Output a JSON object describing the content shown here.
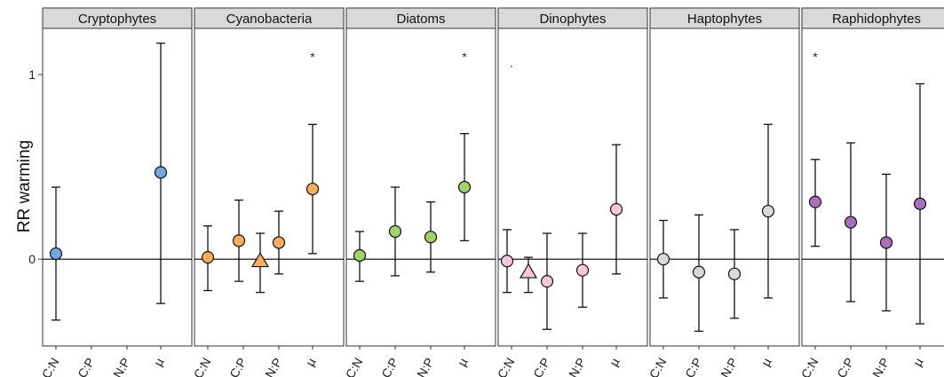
{
  "chart_data": {
    "type": "scatter",
    "ylabel": "RR warming",
    "y_ticks": [
      "0",
      "1"
    ],
    "y_tick_values": [
      0,
      1
    ],
    "ylim": [
      -0.47,
      1.25
    ],
    "categories": [
      "C:N",
      "C:P",
      "N:P",
      "µ"
    ],
    "reference_line": 0,
    "panels": [
      {
        "name": "Cryptophytes",
        "color": "#6fa8dc",
        "points": [
          {
            "x": "C:N",
            "y": 0.03,
            "lo": -0.33,
            "hi": 0.39,
            "shape": "circle"
          },
          {
            "x": "µ",
            "y": 0.47,
            "lo": -0.24,
            "hi": 1.17,
            "shape": "circle"
          }
        ],
        "annotations": []
      },
      {
        "name": "Cyanobacteria",
        "color": "#f6ad5c",
        "points": [
          {
            "x": "C:N",
            "y": 0.01,
            "lo": -0.17,
            "hi": 0.18,
            "shape": "circle"
          },
          {
            "x": "C:P",
            "y": 0.1,
            "lo": -0.12,
            "hi": 0.32,
            "shape": "circle"
          },
          {
            "x": "C:P",
            "y": -0.01,
            "lo": -0.18,
            "hi": 0.14,
            "shape": "triangle"
          },
          {
            "x": "N:P",
            "y": 0.09,
            "lo": -0.08,
            "hi": 0.26,
            "shape": "circle"
          },
          {
            "x": "µ",
            "y": 0.38,
            "lo": 0.03,
            "hi": 0.73,
            "shape": "circle"
          }
        ],
        "annotations": [
          {
            "x": "µ",
            "y": 1.11,
            "text": "*"
          }
        ]
      },
      {
        "name": "Diatoms",
        "color": "#9fd36a",
        "points": [
          {
            "x": "C:N",
            "y": 0.02,
            "lo": -0.12,
            "hi": 0.15,
            "shape": "circle"
          },
          {
            "x": "C:P",
            "y": 0.15,
            "lo": -0.09,
            "hi": 0.39,
            "shape": "circle"
          },
          {
            "x": "N:P",
            "y": 0.12,
            "lo": -0.07,
            "hi": 0.31,
            "shape": "circle"
          },
          {
            "x": "µ",
            "y": 0.39,
            "lo": 0.1,
            "hi": 0.68,
            "shape": "circle"
          }
        ],
        "annotations": [
          {
            "x": "µ",
            "y": 1.11,
            "text": "*"
          }
        ]
      },
      {
        "name": "Dinophytes",
        "color": "#f6c6dc",
        "points": [
          {
            "x": "C:N",
            "y": -0.01,
            "lo": -0.18,
            "hi": 0.16,
            "shape": "circle"
          },
          {
            "x": "C:N",
            "y": -0.07,
            "lo": -0.18,
            "hi": 0.01,
            "shape": "triangle"
          },
          {
            "x": "C:P",
            "y": -0.12,
            "lo": -0.38,
            "hi": 0.14,
            "shape": "circle"
          },
          {
            "x": "N:P",
            "y": -0.06,
            "lo": -0.26,
            "hi": 0.14,
            "shape": "circle"
          },
          {
            "x": "µ",
            "y": 0.27,
            "lo": -0.08,
            "hi": 0.62,
            "shape": "circle"
          }
        ],
        "annotations": [
          {
            "x": "C:N",
            "y": 1.08,
            "text": "."
          }
        ]
      },
      {
        "name": "Haptophytes",
        "color": "#d9d9d9",
        "points": [
          {
            "x": "C:N",
            "y": 0.0,
            "lo": -0.21,
            "hi": 0.21,
            "shape": "circle"
          },
          {
            "x": "C:P",
            "y": -0.07,
            "lo": -0.39,
            "hi": 0.24,
            "shape": "circle"
          },
          {
            "x": "N:P",
            "y": -0.08,
            "lo": -0.32,
            "hi": 0.16,
            "shape": "circle"
          },
          {
            "x": "µ",
            "y": 0.26,
            "lo": -0.21,
            "hi": 0.73,
            "shape": "circle"
          }
        ],
        "annotations": []
      },
      {
        "name": "Raphidophytes",
        "color": "#a86fc0",
        "points": [
          {
            "x": "C:N",
            "y": 0.31,
            "lo": 0.07,
            "hi": 0.54,
            "shape": "circle"
          },
          {
            "x": "C:P",
            "y": 0.2,
            "lo": -0.23,
            "hi": 0.63,
            "shape": "circle"
          },
          {
            "x": "N:P",
            "y": 0.09,
            "lo": -0.28,
            "hi": 0.46,
            "shape": "circle"
          },
          {
            "x": "µ",
            "y": 0.3,
            "lo": -0.35,
            "hi": 0.95,
            "shape": "circle"
          }
        ],
        "annotations": [
          {
            "x": "C:N",
            "y": 1.11,
            "text": "*"
          }
        ]
      }
    ]
  }
}
